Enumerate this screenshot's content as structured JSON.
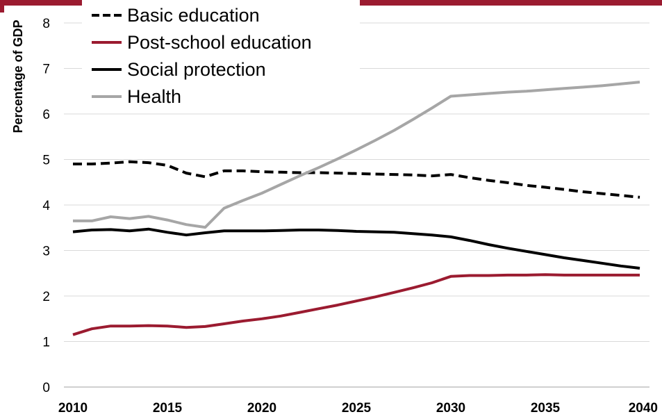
{
  "chart_data": {
    "type": "line",
    "title": "",
    "xlabel": "",
    "ylabel": "Percentage of GDP",
    "xlim": [
      2010,
      2040
    ],
    "ylim": [
      0,
      8
    ],
    "x_ticks": [
      "2010",
      "2015",
      "2020",
      "2025",
      "2030",
      "2035",
      "2040"
    ],
    "y_ticks": [
      "0",
      "1",
      "2",
      "3",
      "4",
      "5",
      "6",
      "7",
      "8"
    ],
    "grid": "horizontal",
    "legend_position": "top-left",
    "x": [
      2010,
      2011,
      2012,
      2013,
      2014,
      2015,
      2016,
      2017,
      2018,
      2019,
      2020,
      2021,
      2022,
      2023,
      2024,
      2025,
      2026,
      2027,
      2028,
      2029,
      2030,
      2031,
      2032,
      2033,
      2034,
      2035,
      2036,
      2037,
      2038,
      2039,
      2040
    ],
    "series": [
      {
        "name": "Basic education",
        "color": "#000000",
        "style": "dashed",
        "values": [
          4.9,
          4.9,
          4.92,
          4.95,
          4.93,
          4.87,
          4.7,
          4.62,
          4.75,
          4.75,
          4.73,
          4.72,
          4.71,
          4.71,
          4.7,
          4.69,
          4.68,
          4.67,
          4.66,
          4.64,
          4.67,
          4.6,
          4.54,
          4.49,
          4.43,
          4.39,
          4.34,
          4.29,
          4.25,
          4.21,
          4.17
        ]
      },
      {
        "name": "Post-school education",
        "color": "#9b1b30",
        "style": "solid",
        "values": [
          1.15,
          1.28,
          1.34,
          1.34,
          1.35,
          1.34,
          1.31,
          1.33,
          1.39,
          1.45,
          1.5,
          1.56,
          1.64,
          1.72,
          1.8,
          1.89,
          1.98,
          2.08,
          2.18,
          2.29,
          2.43,
          2.45,
          2.45,
          2.46,
          2.46,
          2.47,
          2.46,
          2.46,
          2.46,
          2.46,
          2.46
        ]
      },
      {
        "name": "Social protection",
        "color": "#000000",
        "style": "solid",
        "values": [
          3.41,
          3.45,
          3.46,
          3.43,
          3.47,
          3.4,
          3.34,
          3.39,
          3.43,
          3.43,
          3.43,
          3.44,
          3.45,
          3.45,
          3.44,
          3.42,
          3.41,
          3.4,
          3.37,
          3.34,
          3.3,
          3.22,
          3.13,
          3.05,
          2.98,
          2.91,
          2.84,
          2.78,
          2.72,
          2.66,
          2.61
        ]
      },
      {
        "name": "Health",
        "color": "#a6a6a6",
        "style": "solid",
        "values": [
          3.65,
          3.65,
          3.74,
          3.7,
          3.75,
          3.67,
          3.57,
          3.51,
          3.93,
          4.1,
          4.26,
          4.45,
          4.64,
          4.82,
          5.01,
          5.21,
          5.42,
          5.64,
          5.88,
          6.13,
          6.39,
          6.42,
          6.45,
          6.48,
          6.5,
          6.53,
          6.56,
          6.59,
          6.62,
          6.66,
          6.7
        ]
      }
    ]
  }
}
